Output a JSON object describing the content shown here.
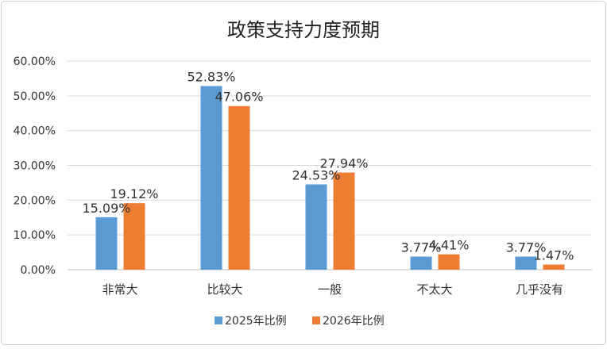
{
  "chart_data": {
    "type": "bar",
    "title": "政策支持力度预期",
    "categories": [
      "非常大",
      "比较大",
      "一般",
      "不太大",
      "几乎没有"
    ],
    "series": [
      {
        "name": "2025年比例",
        "values": [
          15.09,
          52.83,
          24.53,
          3.77,
          3.77
        ],
        "labels": [
          "15.09%",
          "52.83%",
          "24.53%",
          "3.77%",
          "3.77%"
        ],
        "color": "#5b9bd5"
      },
      {
        "name": "2026年比例",
        "values": [
          19.12,
          47.06,
          27.94,
          4.41,
          1.47
        ],
        "labels": [
          "19.12%",
          "47.06%",
          "27.94%",
          "4.41%",
          "1.47%"
        ],
        "color": "#ed7d31"
      }
    ],
    "ylim": [
      0,
      60
    ],
    "yticks": [
      "0.00%",
      "10.00%",
      "20.00%",
      "30.00%",
      "40.00%",
      "50.00%",
      "60.00%"
    ],
    "grid": true,
    "legend": "bottom"
  }
}
